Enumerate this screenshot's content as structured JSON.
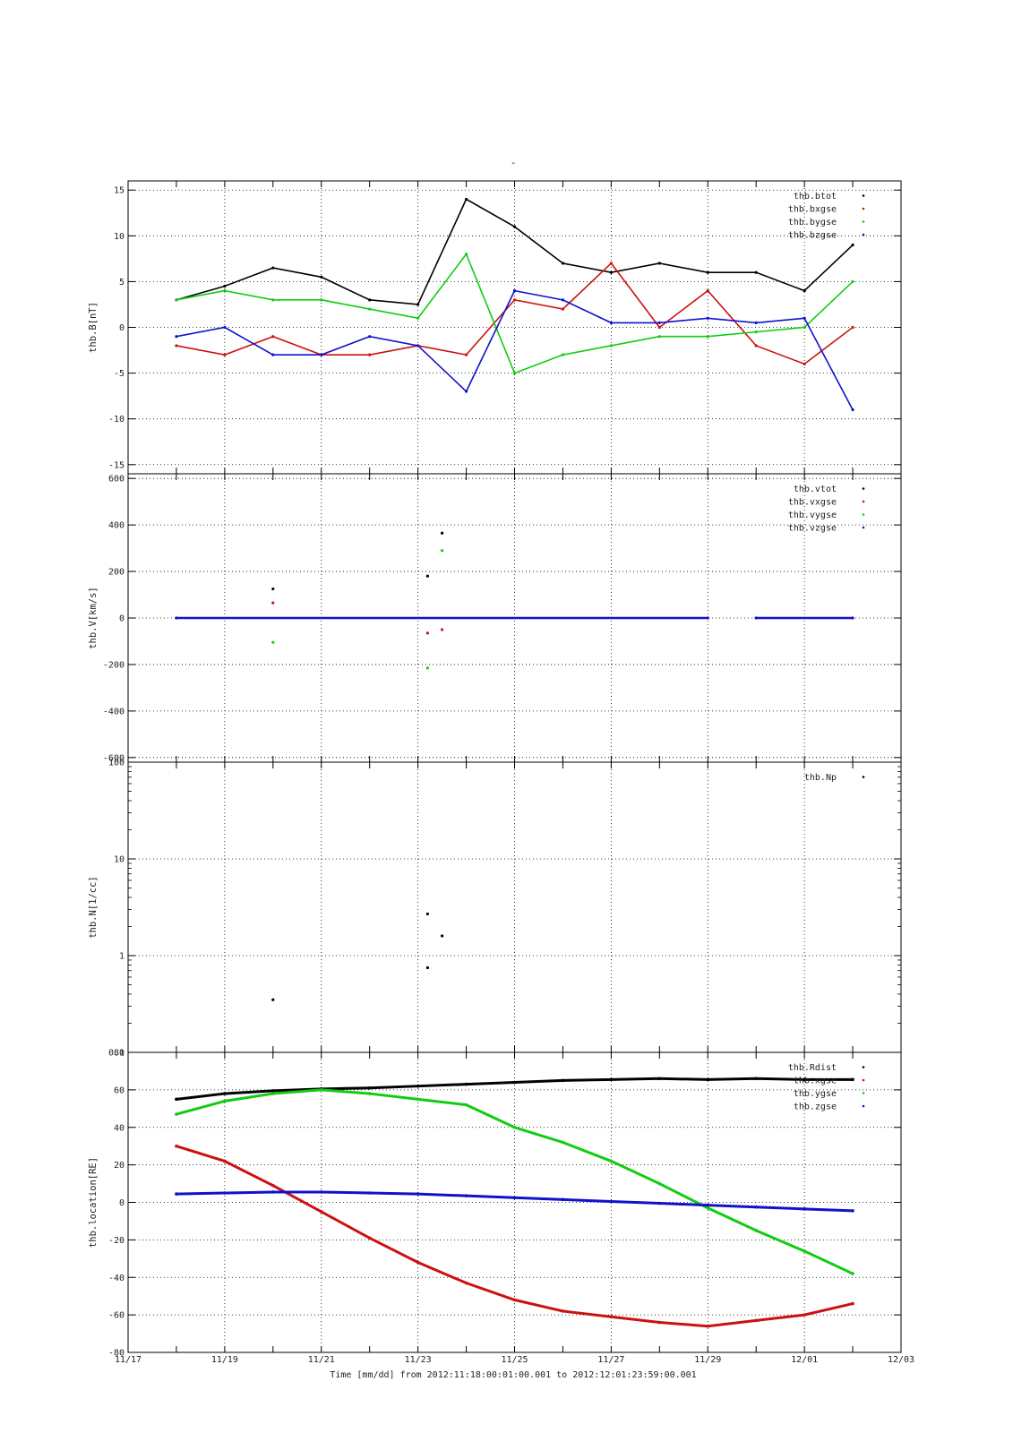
{
  "figure": {
    "top_mark": "-",
    "time_label": "Time [mm/dd]  from 2012:11:18:00:01:00.001  to  2012:12:01:23:59:00.001",
    "x_ticks": [
      "11/17",
      "11/19",
      "11/21",
      "11/23",
      "11/25",
      "11/27",
      "11/29",
      "12/01",
      "12/03"
    ]
  },
  "colors": {
    "black": "#000000",
    "red": "#cc1111",
    "green": "#11cc11",
    "blue": "#1111cc"
  },
  "chart_data": [
    {
      "id": "B",
      "type": "scatter",
      "ylabel": "thb.B[nT]",
      "xlim": [
        "11/17",
        "12/03"
      ],
      "ylim": [
        -16,
        16
      ],
      "yticks": [
        -15,
        -10,
        -5,
        0,
        5,
        10,
        15
      ],
      "grid": true,
      "legend": "top-right",
      "series": [
        {
          "name": "thb.btot",
          "color": "black",
          "x": [
            "11/18",
            "11/19",
            "11/20",
            "11/21",
            "11/22",
            "11/23",
            "11/24",
            "11/25",
            "11/26",
            "11/27",
            "11/28",
            "11/29",
            "11/30",
            "12/01",
            "12/02"
          ],
          "values": [
            3,
            4.5,
            6.5,
            5.5,
            3,
            2.5,
            14,
            11,
            7,
            6,
            7,
            6,
            6,
            4,
            9
          ]
        },
        {
          "name": "thb.bxgse",
          "color": "red",
          "x": [
            "11/18",
            "11/19",
            "11/20",
            "11/21",
            "11/22",
            "11/23",
            "11/24",
            "11/25",
            "11/26",
            "11/27",
            "11/28",
            "11/29",
            "11/30",
            "12/01",
            "12/02"
          ],
          "values": [
            -2,
            -3,
            -1,
            -3,
            -3,
            -2,
            -3,
            3,
            2,
            7,
            0,
            4,
            -2,
            -4,
            0
          ]
        },
        {
          "name": "thb.bygse",
          "color": "green",
          "x": [
            "11/18",
            "11/19",
            "11/20",
            "11/21",
            "11/22",
            "11/23",
            "11/24",
            "11/25",
            "11/26",
            "11/27",
            "11/28",
            "11/29",
            "11/30",
            "12/01",
            "12/02"
          ],
          "values": [
            3,
            4,
            3,
            3,
            2,
            1,
            8,
            -5,
            -3,
            -2,
            -1,
            -1,
            -0.5,
            0,
            5
          ]
        },
        {
          "name": "thb.bzgse",
          "color": "blue",
          "x": [
            "11/18",
            "11/19",
            "11/20",
            "11/21",
            "11/22",
            "11/23",
            "11/24",
            "11/25",
            "11/26",
            "11/27",
            "11/28",
            "11/29",
            "11/30",
            "12/01",
            "12/02"
          ],
          "values": [
            -1,
            0,
            -3,
            -3,
            -1,
            -2,
            -7,
            4,
            3,
            0.5,
            0.5,
            1,
            0.5,
            1,
            -9
          ]
        }
      ]
    },
    {
      "id": "V",
      "type": "scatter",
      "ylabel": "thb.V[km/s]",
      "xlim": [
        "11/17",
        "12/03"
      ],
      "ylim": [
        -620,
        620
      ],
      "yticks": [
        -600,
        -400,
        -200,
        0,
        200,
        400,
        600
      ],
      "grid": true,
      "legend": "top-right",
      "series": [
        {
          "name": "thb.vtot",
          "color": "black",
          "x": [
            "11/20",
            "11/23.2",
            "11/23.5"
          ],
          "values": [
            125,
            180,
            365
          ]
        },
        {
          "name": "thb.vxgse",
          "color": "red",
          "x": [
            "11/20",
            "11/23.2",
            "11/23.5"
          ],
          "values": [
            65,
            -65,
            -50
          ]
        },
        {
          "name": "thb.vygse",
          "color": "green",
          "x": [
            "11/20",
            "11/23.2",
            "11/23.5"
          ],
          "values": [
            -105,
            -215,
            290
          ]
        },
        {
          "name": "thb.vzgse",
          "color": "blue",
          "x": [
            "11/18",
            "11/29",
            "11/30",
            "12/02"
          ],
          "values": [
            0,
            0,
            0,
            0
          ]
        }
      ]
    },
    {
      "id": "N",
      "type": "scatter",
      "ylabel": "thb.N[1/cc]",
      "xlim": [
        "11/17",
        "12/03"
      ],
      "ylim": [
        0.1,
        100
      ],
      "yscale": "log",
      "yticks": [
        0.1,
        1,
        10,
        100
      ],
      "grid": true,
      "legend": "top-right",
      "series": [
        {
          "name": "thb.Np",
          "color": "black",
          "x": [
            "11/20",
            "11/23.2",
            "11/23.2",
            "11/23.5"
          ],
          "values": [
            0.35,
            2.7,
            0.75,
            1.6
          ]
        }
      ]
    },
    {
      "id": "location",
      "type": "line",
      "ylabel": "thb.location[RE]",
      "xlim": [
        "11/17",
        "12/03"
      ],
      "ylim": [
        -80,
        80
      ],
      "yticks": [
        -80,
        -60,
        -40,
        -20,
        0,
        20,
        40,
        60,
        80
      ],
      "grid": true,
      "legend": "top-right",
      "series": [
        {
          "name": "thb.Rdist",
          "color": "black",
          "x": [
            "11/18",
            "11/19",
            "11/20",
            "11/21",
            "11/22",
            "11/23",
            "11/24",
            "11/25",
            "11/26",
            "11/27",
            "11/28",
            "11/29",
            "11/30",
            "12/01",
            "12/02"
          ],
          "values": [
            55,
            58,
            59.5,
            60.5,
            61,
            62,
            63,
            64,
            65,
            65.5,
            66,
            65.5,
            66,
            65.5,
            65.5
          ]
        },
        {
          "name": "thb.xgse",
          "color": "red",
          "x": [
            "11/18",
            "11/19",
            "11/20",
            "11/21",
            "11/22",
            "11/23",
            "11/24",
            "11/25",
            "11/26",
            "11/27",
            "11/28",
            "11/29",
            "11/30",
            "12/01",
            "12/02"
          ],
          "values": [
            30,
            22,
            9,
            -5,
            -19,
            -32,
            -43,
            -52,
            -58,
            -61,
            -64,
            -66,
            -63,
            -60,
            -54
          ]
        },
        {
          "name": "thb.ygse",
          "color": "green",
          "x": [
            "11/18",
            "11/19",
            "11/20",
            "11/21",
            "11/22",
            "11/23",
            "11/24",
            "11/25",
            "11/26",
            "11/27",
            "11/28",
            "11/29",
            "11/30",
            "12/01",
            "12/02"
          ],
          "values": [
            47,
            54,
            58,
            60,
            58,
            55,
            52,
            40,
            32,
            22,
            10,
            -3,
            -15,
            -26,
            -38
          ]
        },
        {
          "name": "thb.zgse",
          "color": "blue",
          "x": [
            "11/18",
            "11/19",
            "11/20",
            "11/21",
            "11/22",
            "11/23",
            "11/24",
            "11/25",
            "11/26",
            "11/27",
            "11/28",
            "11/29",
            "11/30",
            "12/01",
            "12/02"
          ],
          "values": [
            4.5,
            5,
            5.5,
            5.5,
            5,
            4.5,
            3.5,
            2.5,
            1.5,
            0.5,
            -0.5,
            -1.5,
            -2.5,
            -3.5,
            -4.5
          ]
        }
      ]
    }
  ]
}
